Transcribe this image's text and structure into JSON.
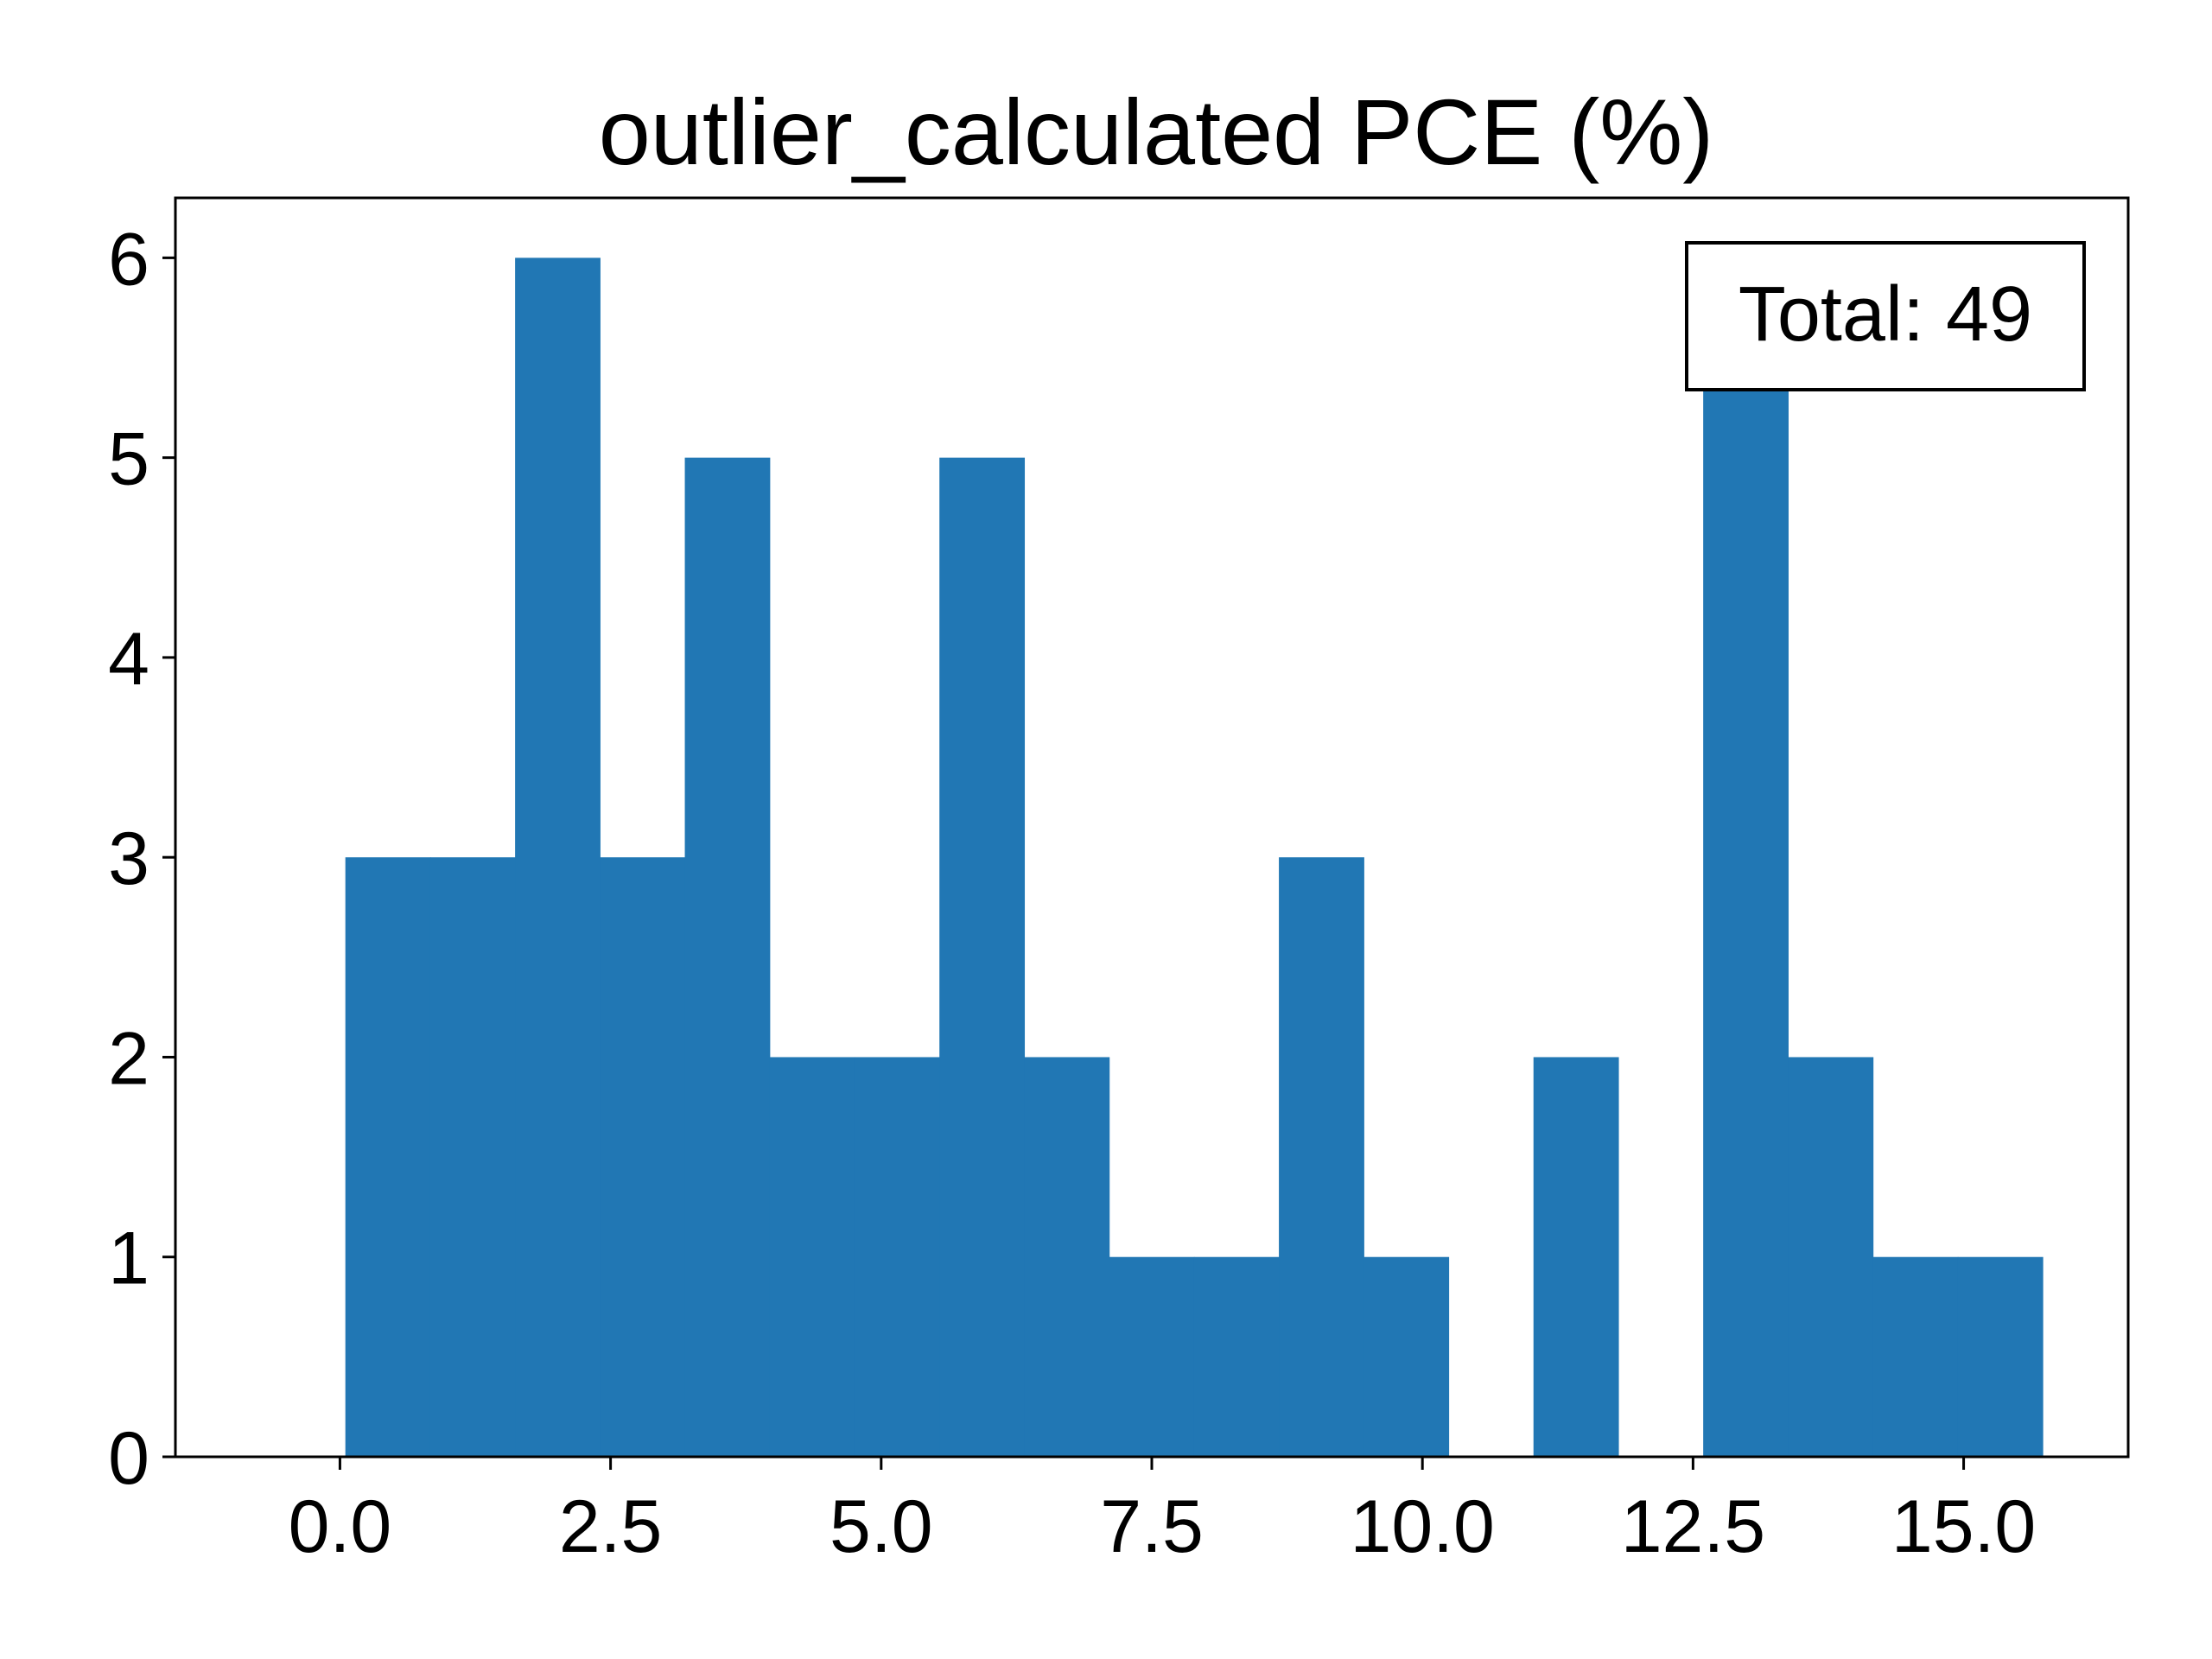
{
  "chart_data": {
    "type": "bar",
    "subtype": "histogram",
    "title": "outlier_calculated PCE (%)",
    "xlabel": "",
    "ylabel": "",
    "bin_edges": [
      0.05,
      0.834,
      1.618,
      2.402,
      3.186,
      3.97,
      4.754,
      5.538,
      6.322,
      7.106,
      7.89,
      8.674,
      9.458,
      10.242,
      11.026,
      11.81,
      12.594,
      13.378,
      14.162,
      14.946,
      15.73
    ],
    "counts": [
      3,
      3,
      6,
      3,
      5,
      2,
      2,
      5,
      2,
      1,
      1,
      3,
      1,
      0,
      2,
      0,
      6,
      2,
      1,
      1
    ],
    "xlim": [
      -1.52,
      16.52
    ],
    "ylim": [
      0,
      6.3
    ],
    "xticks": [
      0.0,
      2.5,
      5.0,
      7.5,
      10.0,
      12.5,
      15.0
    ],
    "xtick_labels": [
      "0.0",
      "2.5",
      "5.0",
      "7.5",
      "10.0",
      "12.5",
      "15.0"
    ],
    "yticks": [
      0,
      1,
      2,
      3,
      4,
      5,
      6
    ],
    "ytick_labels": [
      "0",
      "1",
      "2",
      "3",
      "4",
      "5",
      "6"
    ],
    "grid": false,
    "annotation": {
      "text": "Total: 49",
      "placement": "top-right"
    },
    "colors": {
      "bar": "#2177b4",
      "axes": "#000000",
      "background": "#ffffff"
    }
  }
}
